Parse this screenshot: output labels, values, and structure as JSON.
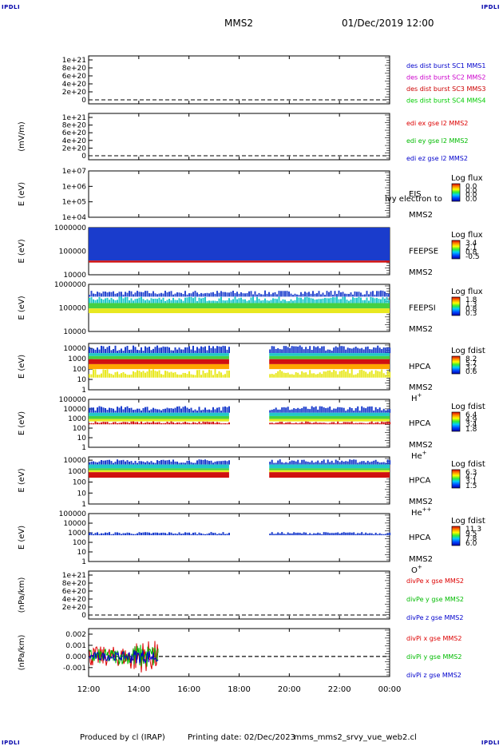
{
  "header": {
    "corner_left": "IPDLI",
    "corner_right": "IPDLI",
    "title": "MMS2",
    "datetime": "01/Dec/2019 12:00"
  },
  "footer": {
    "produced": "Produced by cl (IRAP)",
    "printing_date": "Printing date: 02/Dec/2023",
    "script": "mms_mms2_srvy_vue_web2.cl",
    "corner_left": "IPDLI",
    "corner_right": "IPDLI"
  },
  "time_axis": {
    "ticks": [
      "12:00",
      "14:00",
      "16:00",
      "18:00",
      "20:00",
      "22:00",
      "00:00"
    ]
  },
  "colors": {
    "mms1": "#0000cc",
    "mms2": "#cc00cc",
    "mms3": "#cc0000",
    "mms4": "#00cc00",
    "x": "#dd0000",
    "y": "#00bb00",
    "z": "#0000cc"
  },
  "chart_data": [
    {
      "type": "line",
      "id": "dist",
      "ylabel": "",
      "yticks": [
        "1e+21",
        "8e+20",
        "6e+20",
        "4e+20",
        "2e+20",
        "0"
      ],
      "ylim": [
        0,
        1e+21
      ],
      "zero_line": true,
      "series": [
        {
          "name": "des dist burst SC1 MMS1",
          "color": "#0000cc",
          "values": []
        },
        {
          "name": "des dist burst SC2 MMS2",
          "color": "#cc00cc",
          "values": []
        },
        {
          "name": "des dist burst SC3 MMS3",
          "color": "#cc0000",
          "values": []
        },
        {
          "name": "des dist burst SC4 MMS4",
          "color": "#00cc00",
          "values": []
        }
      ]
    },
    {
      "type": "line",
      "id": "edi",
      "ylabel": "(mV/m)",
      "yticks": [
        "1e+21",
        "8e+20",
        "6e+20",
        "4e+20",
        "2e+20",
        "0"
      ],
      "ylim": [
        0,
        1e+21
      ],
      "zero_line": true,
      "series": [
        {
          "name": "edi ex gse l2 MMS2",
          "color": "#dd0000",
          "values": []
        },
        {
          "name": "edi ey gse l2 MMS2",
          "color": "#00bb00",
          "values": []
        },
        {
          "name": "edi ez gse l2 MMS2",
          "color": "#0000cc",
          "values": []
        }
      ]
    },
    {
      "type": "heatmap",
      "id": "eis",
      "ylabel": "E (eV)",
      "yticks": [
        "1e+07",
        "1e+06",
        "1e+05",
        "1e+04"
      ],
      "ylim": [
        10000,
        10000000
      ],
      "yscale": "log",
      "instrument": "EIS",
      "overlay": "lvy electron to",
      "spacecraft": "MMS2",
      "colorbar_title": "Log flux",
      "colorbar_ticks": [
        "0.0",
        "0.0",
        "0.0",
        "0.0"
      ],
      "coverage": []
    },
    {
      "type": "heatmap",
      "id": "feepse",
      "ylabel": "E (eV)",
      "yticks": [
        "1000000",
        "100000",
        "10000"
      ],
      "ylim": [
        10000,
        1000000
      ],
      "yscale": "log",
      "instrument": "FEEPSE",
      "spacecraft": "MMS2",
      "colorbar_title": "Log flux",
      "colorbar_ticks": [
        "3.4",
        "2.1",
        "0.8",
        "-0.5"
      ],
      "coverage": [
        [
          0.0,
          12.0
        ]
      ],
      "bands": [
        {
          "from": 40000,
          "to": 1000000,
          "color": "#1a3ccc"
        },
        {
          "from": 33000,
          "to": 40000,
          "color": "#d01010"
        }
      ]
    },
    {
      "type": "heatmap",
      "id": "feepsi",
      "ylabel": "E (eV)",
      "yticks": [
        "1000000",
        "100000",
        "10000"
      ],
      "ylim": [
        10000,
        1000000
      ],
      "yscale": "log",
      "instrument": "FEEPSI",
      "spacecraft": "MMS2",
      "colorbar_title": "Log flux",
      "colorbar_ticks": [
        "1.8",
        "1.3",
        "0.8",
        "0.3"
      ],
      "coverage": [
        [
          0.0,
          12.0
        ]
      ],
      "bands": [
        {
          "from": 300000,
          "to": 550000,
          "color": "#2a4ad0",
          "sparse": true
        },
        {
          "from": 160000,
          "to": 300000,
          "color": "#22c8c8",
          "sparse": true
        },
        {
          "from": 95000,
          "to": 160000,
          "color": "#44d044"
        },
        {
          "from": 60000,
          "to": 95000,
          "color": "#e8e820"
        }
      ]
    },
    {
      "type": "heatmap",
      "id": "hpca_h",
      "ylabel": "E (eV)",
      "yticks": [
        "10000",
        "1000",
        "100",
        "10",
        "1"
      ],
      "ylim": [
        1,
        30000
      ],
      "yscale": "log",
      "instrument": "HPCA",
      "spacecraft": "MMS2",
      "species": "H",
      "charge": "+",
      "colorbar_title": "Log fdist",
      "colorbar_ticks": [
        "8.2",
        "5.7",
        "3.2",
        "0.6"
      ],
      "coverage": [
        [
          0.0,
          5.6
        ],
        [
          7.2,
          12.0
        ]
      ],
      "bands": [
        {
          "from": 3500,
          "to": 20000,
          "color": "#1a3ccc",
          "sparse": true
        },
        {
          "from": 1800,
          "to": 3500,
          "color": "#22c8c8"
        },
        {
          "from": 900,
          "to": 1800,
          "color": "#44d044"
        },
        {
          "from": 300,
          "to": 900,
          "color": "#d01010"
        },
        {
          "from": 100,
          "to": 300,
          "color": "#ffa500"
        },
        {
          "from": 15,
          "to": 100,
          "color": "#e8e820",
          "sparse": true
        }
      ]
    },
    {
      "type": "heatmap",
      "id": "hpca_he1",
      "ylabel": "E (eV)",
      "yticks": [
        "100000",
        "10000",
        "1000",
        "100",
        "10",
        "1"
      ],
      "ylim": [
        1,
        100000
      ],
      "yscale": "log",
      "instrument": "HPCA",
      "spacecraft": "MMS2",
      "species": "He",
      "charge": "+",
      "colorbar_title": "Log fdist",
      "colorbar_ticks": [
        "6.4",
        "4.9",
        "3.4",
        "1.8"
      ],
      "coverage": [
        [
          0.0,
          5.6
        ],
        [
          7.2,
          12.0
        ]
      ],
      "bands": [
        {
          "from": 4000,
          "to": 20000,
          "color": "#1a3ccc",
          "sparse": true
        },
        {
          "from": 1800,
          "to": 4000,
          "color": "#22c8c8"
        },
        {
          "from": 900,
          "to": 1800,
          "color": "#44d044"
        },
        {
          "from": 500,
          "to": 900,
          "color": "#e8e820"
        },
        {
          "from": 250,
          "to": 500,
          "color": "#d01010",
          "sparse": true
        }
      ]
    },
    {
      "type": "heatmap",
      "id": "hpca_he2",
      "ylabel": "E (eV)",
      "yticks": [
        "10000",
        "1000",
        "100",
        "10",
        "1"
      ],
      "ylim": [
        1,
        20000
      ],
      "yscale": "log",
      "instrument": "HPCA",
      "spacecraft": "MMS2",
      "species": "He",
      "charge": "++",
      "colorbar_title": "Log fdist",
      "colorbar_ticks": [
        "6.3",
        "4.7",
        "3.1",
        "1.5"
      ],
      "coverage": [
        [
          0.0,
          5.6
        ],
        [
          7.2,
          12.0
        ]
      ],
      "bands": [
        {
          "from": 4000,
          "to": 12000,
          "color": "#1a3ccc",
          "sparse": true
        },
        {
          "from": 1800,
          "to": 4000,
          "color": "#22c8c8"
        },
        {
          "from": 1200,
          "to": 1800,
          "color": "#44d044"
        },
        {
          "from": 800,
          "to": 1200,
          "color": "#e8e820"
        },
        {
          "from": 250,
          "to": 800,
          "color": "#d01010"
        }
      ]
    },
    {
      "type": "heatmap",
      "id": "hpca_o",
      "ylabel": "E (eV)",
      "yticks": [
        "100000",
        "10000",
        "1000",
        "100",
        "10",
        "1"
      ],
      "ylim": [
        1,
        100000
      ],
      "yscale": "log",
      "instrument": "HPCA",
      "spacecraft": "MMS2",
      "species": "O",
      "charge": "+",
      "colorbar_title": "Log fdist",
      "colorbar_ticks": [
        "11.3",
        "9.5",
        "7.8",
        "6.0"
      ],
      "coverage": [
        [
          0.0,
          5.6
        ],
        [
          7.2,
          12.0
        ]
      ],
      "bands": [
        {
          "from": 550,
          "to": 1200,
          "color": "#1a3ccc",
          "sparse": true
        }
      ]
    },
    {
      "type": "line",
      "id": "divpe",
      "ylabel": "(nPa/km)",
      "yticks": [
        "1e+21",
        "8e+20",
        "6e+20",
        "4e+20",
        "2e+20",
        "0"
      ],
      "ylim": [
        0,
        1e+21
      ],
      "zero_line": true,
      "series": [
        {
          "name": "divPe x gse MMS2",
          "color": "#dd0000",
          "values": []
        },
        {
          "name": "divPe y gse MMS2",
          "color": "#00bb00",
          "values": []
        },
        {
          "name": "divPe z gse MMS2",
          "color": "#0000cc",
          "values": []
        }
      ]
    },
    {
      "type": "line",
      "id": "divpi",
      "ylabel": "(nPa/km)",
      "yticks": [
        "0.002",
        "0.001",
        "0.000",
        "-0.001"
      ],
      "ylim": [
        -0.0018,
        0.0025
      ],
      "zero_line": true,
      "data_end_hour": 2.8,
      "series": [
        {
          "name": "divPi x gse MMS2",
          "color": "#dd0000",
          "amplitude": 0.0009
        },
        {
          "name": "divPi y gse MMS2",
          "color": "#00bb00",
          "amplitude": 0.0007
        },
        {
          "name": "divPi z gse MMS2",
          "color": "#0000cc",
          "amplitude": 0.0004
        }
      ]
    }
  ]
}
